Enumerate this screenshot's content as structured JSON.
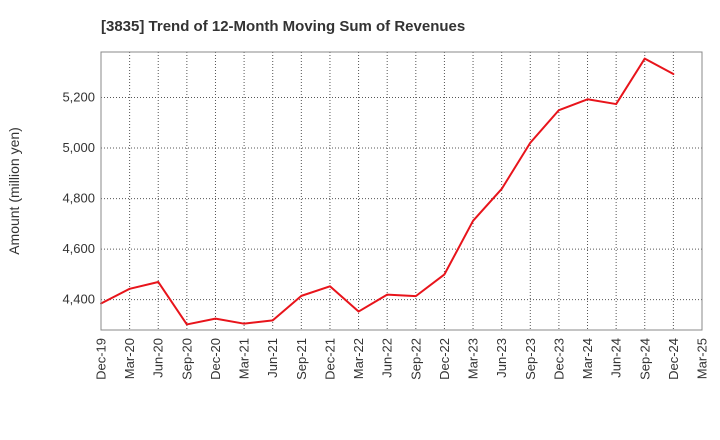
{
  "chart_data": {
    "type": "line",
    "title": "[3835]  Trend of 12-Month Moving Sum of Revenues",
    "xlabel": "",
    "ylabel": "Amount (million yen)",
    "x": [
      "Dec-19",
      "Mar-20",
      "Jun-20",
      "Sep-20",
      "Dec-20",
      "Mar-21",
      "Jun-21",
      "Sep-21",
      "Dec-21",
      "Mar-22",
      "Jun-22",
      "Sep-22",
      "Dec-22",
      "Mar-23",
      "Jun-23",
      "Sep-23",
      "Dec-23",
      "Mar-24",
      "Jun-24",
      "Sep-24",
      "Dec-24",
      "Mar-25"
    ],
    "series": [
      {
        "color": "#e8141b",
        "values": [
          4385,
          4443,
          4470,
          4302,
          4325,
          4305,
          4318,
          4415,
          4453,
          4353,
          4420,
          4414,
          4500,
          4712,
          4838,
          5021,
          5150,
          5193,
          5174,
          5354,
          5293,
          null
        ]
      }
    ],
    "yticks": [
      4400,
      4600,
      4800,
      5000,
      5200
    ],
    "ytick_labels": [
      "4,400",
      "4,600",
      "4,800",
      "5,000",
      "5,200"
    ],
    "ylim": [
      4280,
      5380
    ],
    "grid": true,
    "legend": "none"
  }
}
